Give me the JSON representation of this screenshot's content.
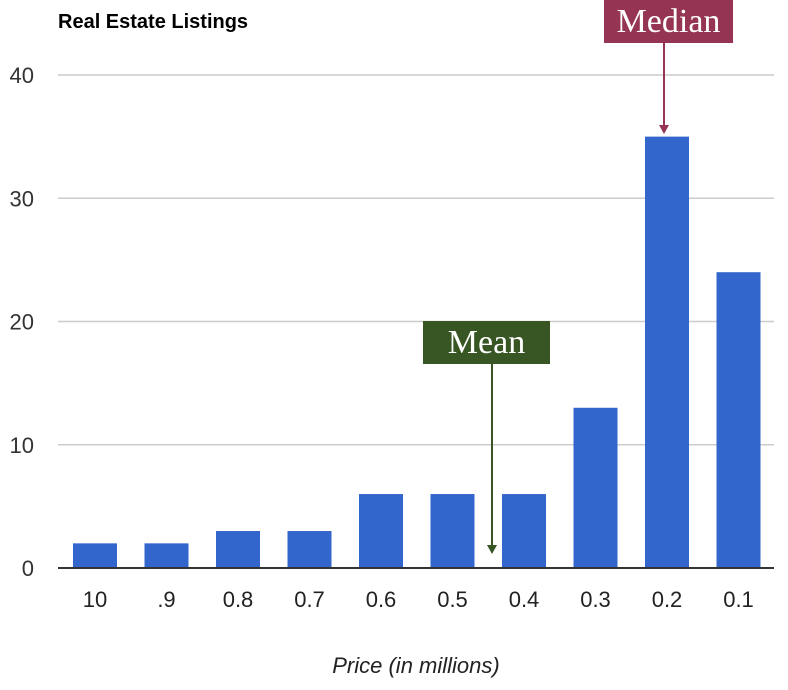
{
  "chart_data": {
    "type": "bar",
    "title": "Real Estate Listings",
    "xlabel": "Price (in millions)",
    "ylabel": "",
    "categories": [
      "10",
      ".9",
      "0.8",
      "0.7",
      "0.6",
      "0.5",
      "0.4",
      "0.3",
      "0.2",
      "0.1"
    ],
    "values": [
      2,
      2,
      3,
      3,
      6,
      6,
      6,
      13,
      35,
      24
    ],
    "ylim": [
      0,
      40
    ],
    "yticks": [
      "0",
      "10",
      "20",
      "30",
      "40"
    ],
    "grid": true,
    "legend": "none",
    "colors": {
      "bar": "#3366cc",
      "grid": "#cccccc",
      "baseline": "#333333"
    },
    "annotations": [
      {
        "text": "Mean",
        "color": "#375623",
        "points_to_x_between": [
          "0.5",
          "0.4"
        ],
        "y": 1
      },
      {
        "text": "Median",
        "color": "#953553",
        "points_to_category": "0.2",
        "y": 35
      }
    ]
  }
}
